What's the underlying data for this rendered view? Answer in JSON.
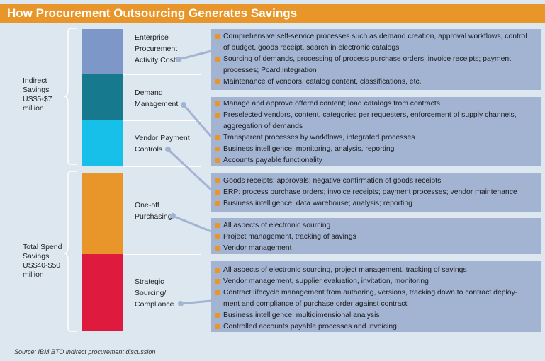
{
  "title": "How Procurement Outsourcing Generates Savings",
  "groups": {
    "indirect": [
      "Indirect",
      "Savings",
      "US$5-$7",
      "million"
    ],
    "total": [
      "Total Spend",
      "Savings",
      "US$40-$50",
      "million"
    ]
  },
  "categories": [
    {
      "lines": [
        "Enterprise",
        "Procurement",
        "Activity Cost"
      ],
      "color": "#7d97c9"
    },
    {
      "lines": [
        "Demand",
        "Management"
      ],
      "color": "#16798e"
    },
    {
      "lines": [
        "Vendor Payment",
        "Controls"
      ],
      "color": "#17c0e8"
    },
    {
      "lines": [
        "One-off",
        "Purchasing"
      ],
      "color": "#e8952a"
    },
    {
      "lines": [
        "Strategic",
        "Sourcing/",
        "Compliance"
      ],
      "color": "#de1a3f"
    }
  ],
  "boxes": [
    {
      "items": [
        [
          "Comprehensive self-service processes such as demand creation, approval workflows, control",
          "of budget, goods receipt, search in electronic catalogs"
        ],
        [
          "Sourcing of demands, processing of process purchase orders; invoice receipts; payment",
          "processes; Pcard integration"
        ],
        [
          "Maintenance of vendors, catalog content, classifications, etc."
        ]
      ]
    },
    {
      "items": [
        [
          "Manage and approve offered content; load catalogs from contracts"
        ],
        [
          "Preselected vendors, content, categories per requesters, enforcement of supply channels,",
          "aggregation of demands"
        ],
        [
          "Transparent processes by workflows, integrated processes"
        ],
        [
          "Business intelligence: monitoring, analysis, reporting"
        ],
        [
          "Accounts payable functionality"
        ]
      ]
    },
    {
      "items": [
        [
          "Goods receipts; approvals; negative confirmation of goods receipts"
        ],
        [
          "ERP: process purchase orders; invoice receipts; payment processes; vendor maintenance"
        ],
        [
          "Business intelligence: data warehouse; analysis; reporting"
        ]
      ]
    },
    {
      "items": [
        [
          "All aspects of electronic sourcing"
        ],
        [
          "Project management, tracking of savings"
        ],
        [
          "Vendor management"
        ]
      ]
    },
    {
      "items": [
        [
          "All aspects of electronic sourcing, project management, tracking of savings"
        ],
        [
          "Vendor management, supplier evaluation, invitation, monitoring"
        ],
        [
          "Contract lifecycle management from authoring, versions, tracking down to contract deploy-",
          "ment and compliance of purchase order against contract"
        ],
        [
          "Business intelligence: multidimensional analysis"
        ],
        [
          "Controlled accounts payable processes and invoicing"
        ]
      ]
    }
  ],
  "source": "Source: IBM BTO indirect procurement discussion"
}
